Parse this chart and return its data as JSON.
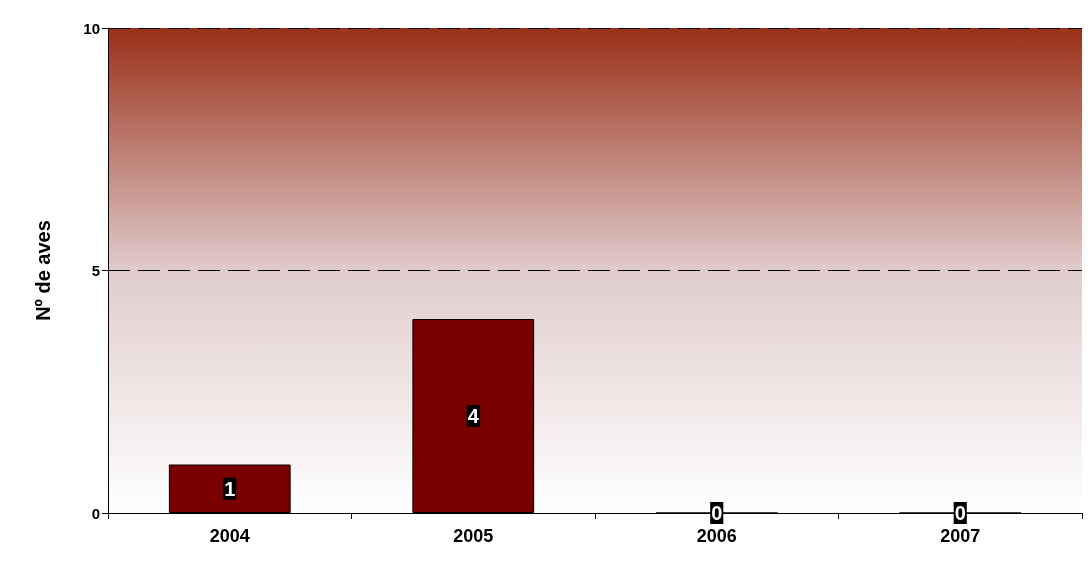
{
  "chart_data": {
    "type": "bar",
    "ylabel": "Nº de aves",
    "categories": [
      "2004",
      "2005",
      "2006",
      "2007"
    ],
    "values": [
      1,
      4,
      0,
      0
    ],
    "color": "#7a0000",
    "ylim": [
      0,
      10
    ],
    "yticks": [
      0,
      5,
      10
    ],
    "grid": "y",
    "data_labels": true
  }
}
